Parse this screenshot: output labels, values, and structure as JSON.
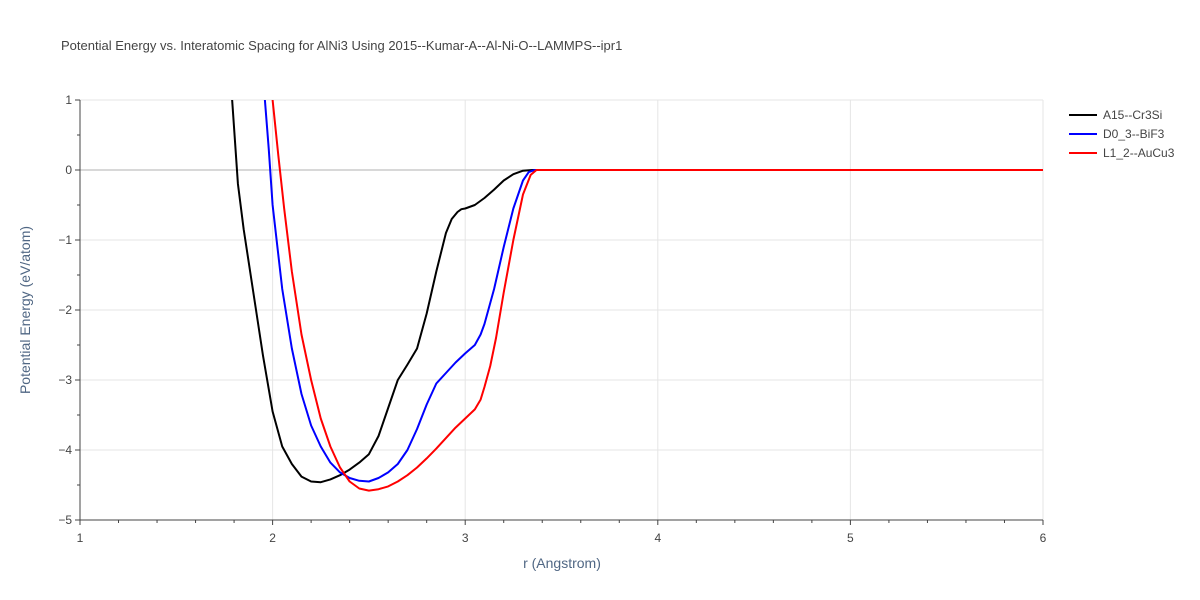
{
  "chart_data": {
    "type": "line",
    "title": "Potential Energy vs. Interatomic Spacing for AlNi3 Using 2015--Kumar-A--Al-Ni-O--LAMMPS--ipr1",
    "xlabel": "r (Angstrom)",
    "ylabel": "Potential Energy (eV/atom)",
    "xlim": [
      1,
      6
    ],
    "ylim": [
      -5,
      1
    ],
    "xticks": [
      1,
      2,
      3,
      4,
      5,
      6
    ],
    "yticks": [
      1,
      0,
      -1,
      -2,
      -3,
      -4,
      -5
    ],
    "xtick_labels": [
      "1",
      "2",
      "3",
      "4",
      "5",
      "6"
    ],
    "ytick_labels": [
      "1",
      "0",
      "−1",
      "−2",
      "−3",
      "−4",
      "−5"
    ],
    "grid": true,
    "legend_position": "top-right",
    "series": [
      {
        "name": "A15--Cr3Si",
        "color": "#000000",
        "x": [
          1.79,
          1.82,
          1.85,
          1.9,
          1.95,
          2.0,
          2.05,
          2.1,
          2.15,
          2.2,
          2.25,
          2.3,
          2.35,
          2.4,
          2.45,
          2.5,
          2.55,
          2.6,
          2.65,
          2.7,
          2.75,
          2.8,
          2.85,
          2.9,
          2.93,
          2.96,
          2.98,
          3.0,
          3.05,
          3.1,
          3.15,
          3.2,
          3.25,
          3.3,
          3.35,
          3.4,
          3.5,
          4.0,
          5.0,
          6.0
        ],
        "y": [
          1.0,
          -0.2,
          -0.85,
          -1.75,
          -2.65,
          -3.45,
          -3.95,
          -4.2,
          -4.38,
          -4.45,
          -4.46,
          -4.42,
          -4.36,
          -4.28,
          -4.18,
          -4.06,
          -3.8,
          -3.4,
          -3.0,
          -2.78,
          -2.55,
          -2.05,
          -1.45,
          -0.9,
          -0.7,
          -0.6,
          -0.56,
          -0.55,
          -0.5,
          -0.4,
          -0.28,
          -0.15,
          -0.06,
          -0.01,
          0.0,
          0.0,
          0.0,
          0.0,
          0.0,
          0.0
        ]
      },
      {
        "name": "D0_3--BiF3",
        "color": "#0000ff",
        "x": [
          1.96,
          1.98,
          2.0,
          2.05,
          2.1,
          2.15,
          2.2,
          2.25,
          2.3,
          2.35,
          2.4,
          2.45,
          2.5,
          2.55,
          2.6,
          2.65,
          2.7,
          2.75,
          2.8,
          2.85,
          2.9,
          2.95,
          3.0,
          3.05,
          3.08,
          3.1,
          3.15,
          3.2,
          3.25,
          3.3,
          3.33,
          3.36,
          3.4,
          3.5,
          4.0,
          5.0,
          6.0
        ],
        "y": [
          1.0,
          0.3,
          -0.5,
          -1.7,
          -2.55,
          -3.2,
          -3.65,
          -3.95,
          -4.18,
          -4.32,
          -4.4,
          -4.44,
          -4.45,
          -4.4,
          -4.32,
          -4.2,
          -4.0,
          -3.7,
          -3.35,
          -3.05,
          -2.9,
          -2.75,
          -2.62,
          -2.5,
          -2.35,
          -2.2,
          -1.7,
          -1.1,
          -0.55,
          -0.15,
          -0.03,
          0.0,
          0.0,
          0.0,
          0.0,
          0.0,
          0.0
        ]
      },
      {
        "name": "L1_2--AuCu3",
        "color": "#ff0000",
        "x": [
          2.0,
          2.03,
          2.06,
          2.1,
          2.15,
          2.2,
          2.25,
          2.3,
          2.35,
          2.4,
          2.45,
          2.5,
          2.55,
          2.6,
          2.65,
          2.7,
          2.75,
          2.8,
          2.85,
          2.9,
          2.95,
          3.0,
          3.05,
          3.08,
          3.1,
          3.13,
          3.16,
          3.2,
          3.25,
          3.3,
          3.34,
          3.37,
          3.4,
          3.5,
          4.0,
          5.0,
          6.0
        ],
        "y": [
          1.0,
          0.2,
          -0.55,
          -1.45,
          -2.35,
          -3.0,
          -3.55,
          -3.95,
          -4.25,
          -4.45,
          -4.55,
          -4.58,
          -4.56,
          -4.52,
          -4.45,
          -4.36,
          -4.25,
          -4.12,
          -3.98,
          -3.83,
          -3.68,
          -3.55,
          -3.42,
          -3.28,
          -3.1,
          -2.8,
          -2.4,
          -1.75,
          -1.0,
          -0.35,
          -0.07,
          0.0,
          0.0,
          0.0,
          0.0,
          0.0,
          0.0
        ]
      }
    ]
  }
}
